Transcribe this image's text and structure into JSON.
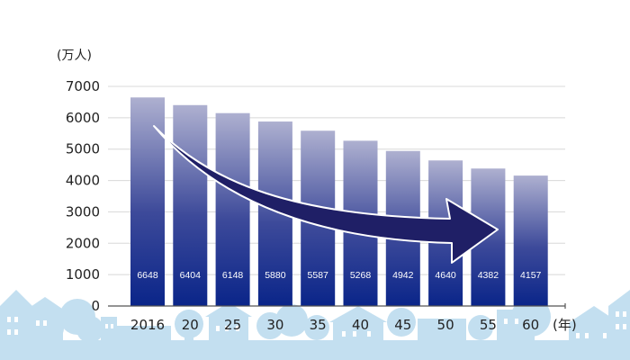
{
  "chart_data": {
    "type": "bar",
    "y_unit_label": "(万人)",
    "x_unit_label": "(年)",
    "categories": [
      "2016",
      "20",
      "25",
      "30",
      "35",
      "40",
      "45",
      "50",
      "55",
      "60"
    ],
    "values": [
      6648,
      6404,
      6148,
      5880,
      5587,
      5268,
      4942,
      4640,
      4382,
      4157
    ],
    "value_labels": [
      "6648",
      "6404",
      "6148",
      "5880",
      "5587",
      "5268",
      "4942",
      "4640",
      "4382",
      "4157"
    ],
    "y_ticks": [
      "0",
      "1000",
      "2000",
      "3000",
      "4000",
      "5000",
      "6000",
      "7000"
    ],
    "ylim": [
      0,
      7000
    ],
    "grid": true,
    "trend_arrow": "decreasing",
    "colors": {
      "bar_top": "#aeb0d0",
      "bar_bottom": "#0a2589",
      "arrow_fill": "#1f1f66",
      "arrow_stroke": "#ffffff",
      "town_silhouette": "#c3dff0",
      "grid": "#d8d8d8",
      "axis": "#555555"
    },
    "background_decoration": "town-skyline"
  }
}
